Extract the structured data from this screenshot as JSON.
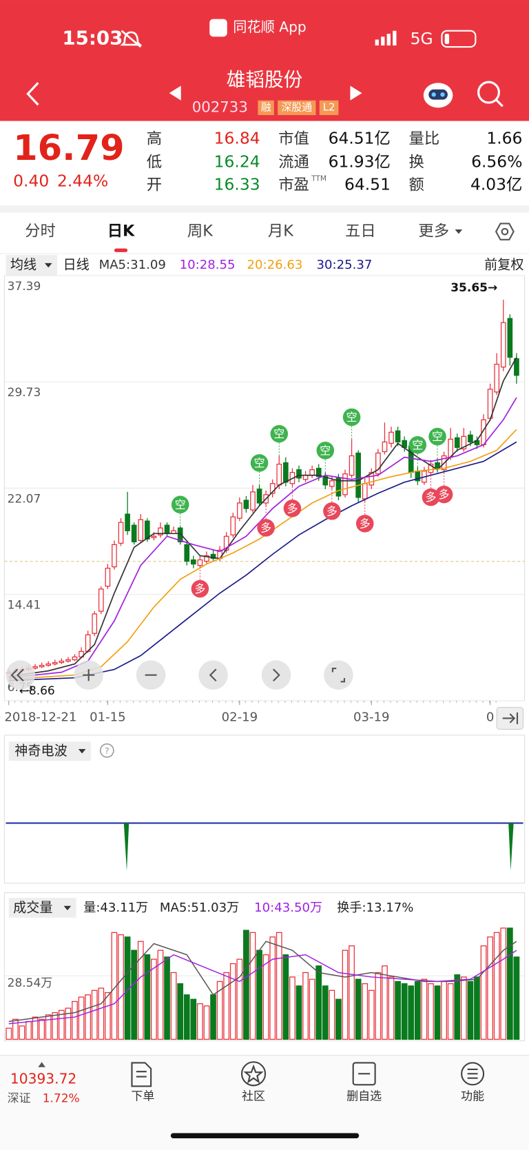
{
  "status": {
    "time": "15:03",
    "app": "同花顺 App",
    "network": "5G"
  },
  "header": {
    "title": "雄韬股份",
    "code": "002733",
    "tags": [
      "融",
      "深股通",
      "L2"
    ]
  },
  "quote": {
    "price": 16.79,
    "change": "0.40",
    "change_pct": "2.44%",
    "stats": [
      [
        "高",
        "16.84",
        "市值",
        "64.51亿",
        "量比",
        "1.66"
      ],
      [
        "低",
        "16.24",
        "流通",
        "61.93亿",
        "换",
        "6.56%"
      ],
      [
        "开",
        "16.33",
        "市盈",
        "64.51",
        "额",
        "4.03亿"
      ]
    ],
    "pe_sup": "TTM"
  },
  "tabs": {
    "items": [
      "分时",
      "日K",
      "周K",
      "月K",
      "五日",
      "更多"
    ],
    "active": 1
  },
  "chart_header": {
    "selector": "均线",
    "period": "日线",
    "adjust": "前复权"
  },
  "indicator": {
    "name": "神奇电波"
  },
  "footer": {
    "index_value": "10393.72",
    "index_name": "深证",
    "index_pct": "1.72%",
    "nav": [
      "下单",
      "社区",
      "删自选",
      "功能"
    ]
  },
  "chart_data": [
    {
      "type": "candlestick",
      "grid": true,
      "ylim": [
        6.75,
        37.39
      ],
      "yticks": [
        37.39,
        29.73,
        22.07,
        14.41,
        6.75
      ],
      "max_label": "35.65→",
      "min_label": "←8.66",
      "categories": [
        "2018-12-21",
        null,
        null,
        null,
        null,
        null,
        null,
        null,
        null,
        null,
        null,
        null,
        null,
        null,
        null,
        "01-15",
        null,
        null,
        null,
        null,
        null,
        null,
        null,
        null,
        null,
        null,
        null,
        null,
        null,
        null,
        null,
        null,
        null,
        null,
        null,
        "02-19",
        null,
        null,
        null,
        null,
        null,
        null,
        null,
        null,
        null,
        null,
        null,
        null,
        null,
        null,
        null,
        null,
        null,
        null,
        null,
        "03-19",
        null,
        null,
        null,
        null,
        null,
        null,
        null,
        null,
        null,
        null,
        null,
        null,
        null,
        null,
        null,
        null,
        null,
        "0",
        null,
        null,
        null,
        null
      ],
      "open": [
        8.7,
        8.8,
        8.9,
        9.0,
        9.1,
        9.2,
        9.3,
        9.4,
        9.5,
        9.6,
        9.7,
        9.9,
        10.3,
        11.6,
        13.2,
        15.0,
        16.4,
        18.1,
        20.2,
        19.4,
        18.3,
        19.7,
        18.5,
        18.7,
        19.4,
        18.8,
        19.2,
        18.0,
        16.9,
        16.5,
        16.8,
        17.3,
        17.0,
        17.6,
        18.7,
        19.9,
        21.2,
        20.5,
        22.0,
        21.0,
        21.7,
        22.3,
        23.9,
        22.4,
        23.4,
        22.7,
        23.0,
        23.5,
        22.9,
        22.2,
        22.8,
        21.6,
        23.0,
        24.6,
        21.3,
        22.3,
        23.1,
        24.7,
        25.3,
        26.2,
        25.5,
        25.1,
        23.3,
        22.5,
        23.2,
        23.9,
        23.4,
        24.3,
        25.7,
        24.9,
        25.9,
        25.5,
        25.2,
        27.1,
        29.0,
        30.8,
        34.3,
        31.4
      ],
      "high": [
        9.0,
        9.1,
        9.2,
        9.3,
        9.4,
        9.5,
        9.6,
        9.7,
        9.8,
        9.9,
        10.1,
        10.6,
        11.8,
        13.2,
        15.0,
        16.6,
        18.3,
        19.9,
        21.8,
        19.6,
        20.2,
        19.9,
        18.9,
        19.6,
        19.6,
        19.3,
        19.3,
        18.2,
        17.2,
        17.2,
        17.5,
        17.6,
        17.9,
        18.9,
        20.3,
        21.4,
        21.5,
        22.3,
        22.3,
        21.9,
        22.7,
        24.4,
        24.3,
        23.5,
        23.7,
        23.3,
        23.7,
        23.8,
        23.2,
        22.9,
        23.1,
        23.4,
        25.6,
        24.8,
        22.8,
        23.5,
        24.9,
        26.8,
        26.5,
        26.5,
        25.8,
        25.4,
        23.6,
        23.6,
        24.1,
        24.2,
        24.7,
        26.4,
        26.0,
        26.4,
        26.2,
        25.8,
        27.4,
        29.6,
        31.8,
        35.65,
        34.6,
        31.8
      ],
      "low": [
        8.66,
        8.7,
        8.8,
        8.9,
        9.0,
        9.1,
        9.2,
        9.3,
        9.4,
        9.5,
        9.6,
        9.8,
        10.2,
        11.4,
        13.0,
        14.8,
        16.2,
        17.9,
        18.7,
        18.0,
        18.1,
        18.2,
        18.3,
        18.5,
        18.6,
        18.8,
        18.0,
        16.5,
        16.3,
        16.4,
        16.6,
        16.8,
        16.8,
        17.4,
        18.5,
        19.7,
        20.3,
        20.3,
        20.8,
        20.8,
        21.4,
        22.0,
        22.2,
        22.2,
        22.5,
        22.5,
        22.8,
        22.6,
        22.0,
        22.0,
        21.2,
        21.4,
        22.8,
        21.0,
        21.1,
        22.0,
        22.9,
        24.5,
        25.0,
        25.1,
        24.7,
        22.8,
        22.3,
        22.3,
        23.0,
        23.2,
        23.2,
        24.1,
        24.7,
        24.7,
        25.1,
        24.9,
        25.0,
        26.9,
        28.8,
        30.5,
        30.9,
        29.6
      ],
      "close": [
        8.8,
        8.9,
        9.0,
        9.1,
        9.2,
        9.3,
        9.4,
        9.5,
        9.6,
        9.7,
        9.9,
        10.3,
        11.5,
        13.0,
        14.8,
        16.3,
        18.0,
        19.6,
        19.0,
        18.2,
        19.8,
        18.4,
        18.6,
        19.2,
        18.8,
        19.0,
        18.2,
        16.8,
        16.6,
        16.9,
        17.2,
        17.0,
        17.6,
        18.6,
        20.0,
        21.0,
        20.6,
        21.8,
        21.0,
        21.6,
        22.4,
        23.8,
        22.5,
        23.2,
        22.8,
        23.0,
        23.4,
        22.9,
        22.3,
        22.6,
        21.5,
        23.1,
        24.4,
        21.4,
        22.4,
        23.2,
        24.6,
        25.4,
        26.1,
        25.4,
        25.0,
        23.2,
        22.6,
        23.3,
        23.8,
        23.5,
        24.4,
        25.6,
        25.0,
        25.8,
        25.4,
        25.2,
        27.0,
        29.2,
        31.0,
        34.0,
        31.5,
        30.2
      ],
      "signals": [
        null,
        null,
        null,
        null,
        null,
        null,
        null,
        null,
        null,
        null,
        null,
        null,
        null,
        null,
        null,
        null,
        null,
        null,
        null,
        null,
        null,
        null,
        null,
        null,
        null,
        null,
        "空",
        null,
        null,
        "多",
        null,
        null,
        null,
        null,
        null,
        null,
        null,
        null,
        "空",
        "多",
        null,
        "空",
        null,
        "多",
        null,
        null,
        null,
        null,
        "空",
        "多",
        null,
        null,
        "空",
        null,
        "多",
        null,
        null,
        null,
        null,
        null,
        null,
        null,
        "空",
        null,
        "多",
        "空",
        "多",
        null,
        null,
        null,
        null,
        null,
        null,
        null,
        null,
        null,
        null,
        null
      ],
      "series": [
        {
          "name": "MA5:31.09",
          "color": "#333333",
          "x": [
            0,
            6,
            10,
            13,
            16,
            19,
            22,
            26,
            29,
            32,
            35,
            38,
            41,
            44,
            47,
            50,
            53,
            56,
            59,
            62,
            65,
            68,
            71,
            73,
            75,
            77
          ],
          "values": [
            8.5,
            8.9,
            9.4,
            10.8,
            14.5,
            17.8,
            18.8,
            18.8,
            17.2,
            17.0,
            19.0,
            20.8,
            22.3,
            23.0,
            23.0,
            22.6,
            22.6,
            23.4,
            25.3,
            24.3,
            23.4,
            24.8,
            25.5,
            27.0,
            29.8,
            31.5
          ]
        },
        {
          "name": "10:28.55",
          "color": "#a020e0",
          "x": [
            0,
            8,
            12,
            16,
            20,
            24,
            28,
            32,
            36,
            40,
            44,
            48,
            52,
            56,
            60,
            64,
            68,
            72,
            75,
            77
          ],
          "values": [
            8.4,
            8.8,
            9.6,
            12.5,
            16.5,
            18.6,
            18.0,
            17.5,
            18.6,
            20.6,
            22.2,
            23.0,
            22.7,
            23.0,
            24.3,
            24.0,
            24.4,
            25.2,
            27.0,
            28.6
          ]
        },
        {
          "name": "20:26.63",
          "color": "#f0a010",
          "x": [
            0,
            10,
            14,
            18,
            22,
            26,
            30,
            34,
            38,
            42,
            46,
            50,
            54,
            58,
            62,
            66,
            70,
            74,
            77
          ],
          "values": [
            8.3,
            8.6,
            9.2,
            11.0,
            13.5,
            15.5,
            16.6,
            17.4,
            18.4,
            19.7,
            21.0,
            21.9,
            22.4,
            22.9,
            23.3,
            23.5,
            24.0,
            24.8,
            26.3
          ]
        },
        {
          "name": "30:25.37",
          "color": "#1a1a8c",
          "x": [
            0,
            10,
            16,
            20,
            24,
            28,
            32,
            36,
            40,
            44,
            48,
            52,
            56,
            60,
            64,
            68,
            72,
            77
          ],
          "values": [
            8.2,
            8.4,
            9.0,
            10.0,
            11.5,
            13.0,
            14.5,
            15.8,
            17.3,
            18.7,
            19.8,
            20.8,
            21.7,
            22.5,
            23.0,
            23.5,
            24.0,
            25.4
          ]
        }
      ]
    },
    {
      "type": "bar",
      "title": "成交量",
      "ylim": [
        0,
        56
      ],
      "yticks": [
        {
          "value": 28.54,
          "label": "28.54万"
        }
      ],
      "stats": [
        "量:43.11万",
        "换手:13.17%"
      ],
      "values": [
        5,
        9,
        6,
        8,
        10,
        9,
        11,
        12,
        13,
        14,
        17,
        19,
        20,
        22,
        23,
        21,
        48,
        47,
        46,
        40,
        44,
        38,
        36,
        40,
        37,
        30,
        25,
        20,
        18,
        16,
        15,
        20,
        26,
        30,
        34,
        36,
        49,
        48,
        40,
        38,
        46,
        48,
        38,
        28,
        24,
        30,
        27,
        33,
        24,
        22,
        18,
        40,
        42,
        27,
        25,
        22,
        30,
        33,
        28,
        26,
        25,
        24,
        26,
        27,
        25,
        24,
        26,
        25,
        29,
        28,
        26,
        28,
        42,
        46,
        48,
        50,
        50,
        37
      ],
      "series": [
        {
          "name": "MA5:51.03万",
          "color": "#555555",
          "x": [
            0,
            10,
            14,
            18,
            22,
            27,
            31,
            35,
            39,
            43,
            47,
            51,
            55,
            59,
            63,
            67,
            71,
            75,
            77
          ],
          "values": [
            8,
            12,
            16,
            30,
            43,
            38,
            20,
            28,
            44,
            40,
            30,
            28,
            30,
            28,
            26,
            26,
            27,
            40,
            44
          ]
        },
        {
          "name": "10:43.50万",
          "color": "#a020e0",
          "x": [
            0,
            10,
            16,
            20,
            25,
            30,
            35,
            40,
            45,
            50,
            55,
            60,
            65,
            70,
            75,
            77
          ],
          "values": [
            7,
            10,
            16,
            28,
            38,
            32,
            26,
            36,
            38,
            30,
            28,
            27,
            26,
            27,
            36,
            40
          ]
        }
      ]
    }
  ]
}
